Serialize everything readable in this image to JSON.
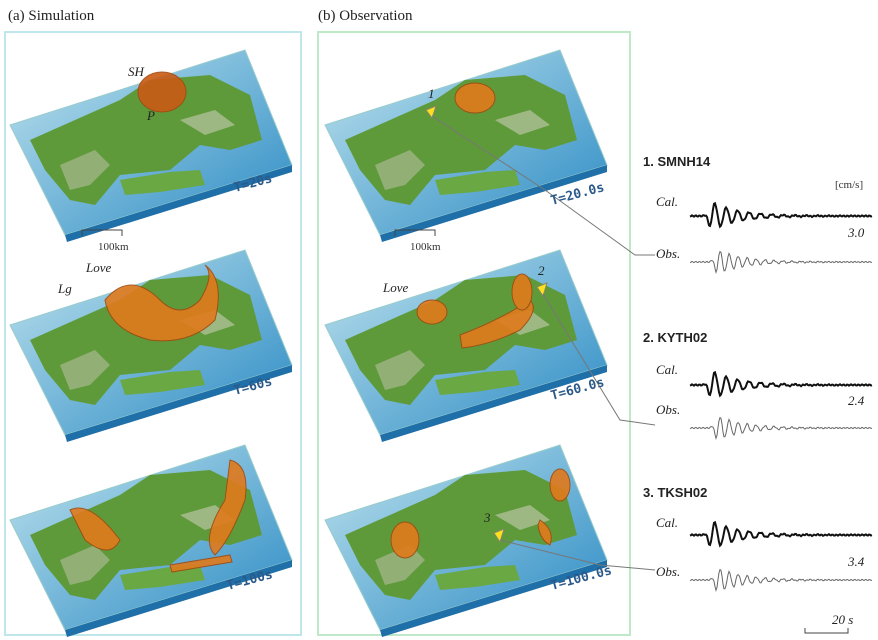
{
  "panel_a": {
    "title": "(a) Simulation",
    "maps": [
      {
        "time": "T=20s",
        "labels": [
          "SH",
          "P"
        ],
        "scale": "100km"
      },
      {
        "time": "T=60s",
        "labels": [
          "Love",
          "Lg"
        ]
      },
      {
        "time": "T=100s"
      }
    ]
  },
  "panel_b": {
    "title": "(b) Observation",
    "maps": [
      {
        "time": "T=20.0s",
        "labels": [
          "1"
        ],
        "scale": "100km"
      },
      {
        "time": "T=60.0s",
        "labels": [
          "Love",
          "2"
        ]
      },
      {
        "time": "T=100.0s",
        "labels": [
          "3"
        ]
      }
    ]
  },
  "stations": [
    {
      "name": "1. SMNH14",
      "unit": "[cm/s]",
      "cal": "Cal.",
      "obs": "Obs.",
      "amp": "3.0"
    },
    {
      "name": "2. KYTH02",
      "cal": "Cal.",
      "obs": "Obs.",
      "amp": "2.4"
    },
    {
      "name": "3. TKSH02",
      "cal": "Cal.",
      "obs": "Obs.",
      "amp": "3.4"
    }
  ],
  "time_scale": "20 s"
}
